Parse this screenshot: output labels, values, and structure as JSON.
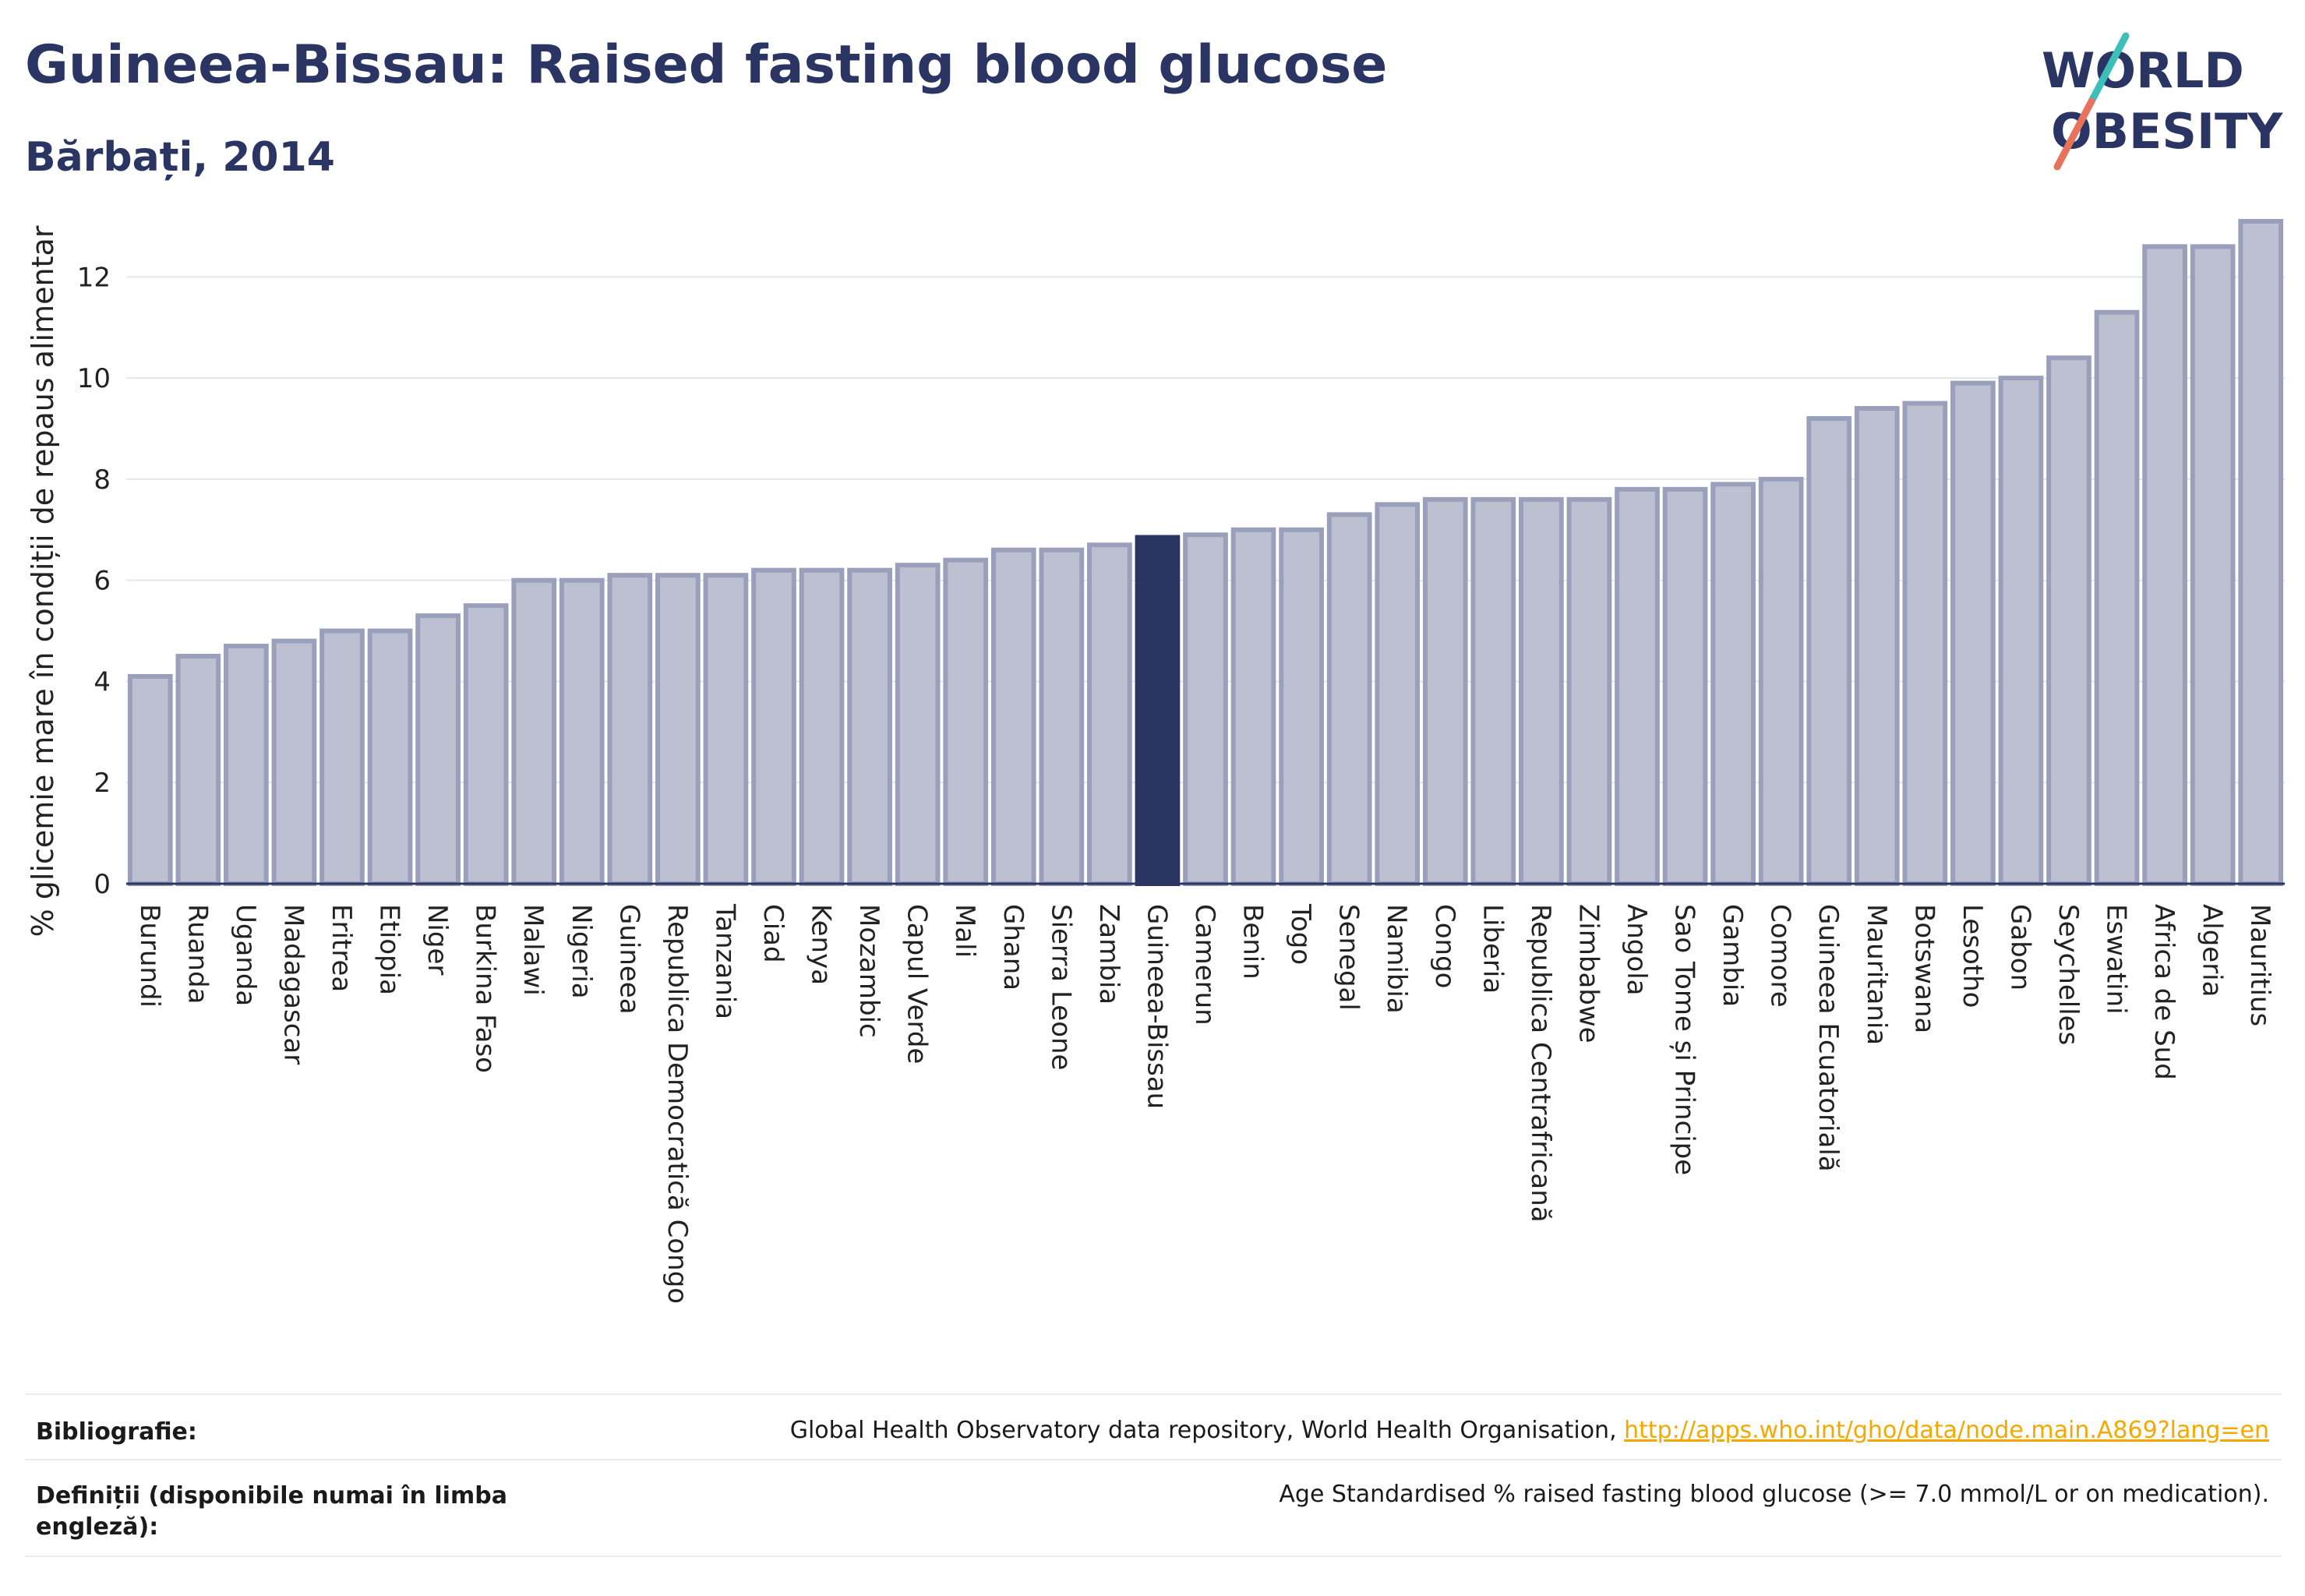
{
  "header": {
    "title": "Guineea-Bissau: Raised fasting blood glucose",
    "subtitle": "Bărbați, 2014"
  },
  "logo": {
    "line1": "WORLD",
    "line2": "OBESITY",
    "letter_o": "O",
    "rest1": "RLD",
    "rest2": "BESITY",
    "w": "W"
  },
  "colors": {
    "bar": "#bcc0d0",
    "bar_border": "#9aa0bb",
    "highlight": "#2a3563",
    "text": "#2a3563",
    "logo_teal": "#3bbfb8",
    "logo_coral": "#e8735c",
    "link": "#f5a800"
  },
  "chart_data": {
    "type": "bar",
    "ylabel": "% glicemie mare în condiții de repaus alimentar",
    "ylim": [
      0,
      13.5
    ],
    "yticks": [
      0,
      2,
      4,
      6,
      8,
      10,
      12
    ],
    "grid": true,
    "highlight": "Guineea-Bissau",
    "categories": [
      "Burundi",
      "Ruanda",
      "Uganda",
      "Madagascar",
      "Eritrea",
      "Etiopia",
      "Niger",
      "Burkina Faso",
      "Malawi",
      "Nigeria",
      "Guineea",
      "Republica Democratică Congo",
      "Tanzania",
      "Ciad",
      "Kenya",
      "Mozambic",
      "Capul Verde",
      "Mali",
      "Ghana",
      "Sierra Leone",
      "Zambia",
      "Guineea-Bissau",
      "Camerun",
      "Benin",
      "Togo",
      "Senegal",
      "Namibia",
      "Congo",
      "Liberia",
      "Republica Centrafricană",
      "Zimbabwe",
      "Angola",
      "Sao Tome și Principe",
      "Gambia",
      "Comore",
      "Guineea Ecuatorială",
      "Mauritania",
      "Botswana",
      "Lesotho",
      "Gabon",
      "Seychelles",
      "Eswatini",
      "Africa de Sud",
      "Algeria",
      "Mauritius"
    ],
    "values": [
      4.1,
      4.5,
      4.7,
      4.8,
      5.0,
      5.0,
      5.3,
      5.5,
      6.0,
      6.0,
      6.1,
      6.1,
      6.1,
      6.2,
      6.2,
      6.2,
      6.3,
      6.4,
      6.6,
      6.6,
      6.7,
      6.85,
      6.9,
      7.0,
      7.0,
      7.3,
      7.5,
      7.6,
      7.6,
      7.6,
      7.6,
      7.8,
      7.8,
      7.9,
      8.0,
      9.2,
      9.4,
      9.5,
      9.9,
      10.0,
      10.4,
      11.3,
      12.6,
      12.6,
      13.1
    ]
  },
  "references": {
    "bibliography_label": "Bibliografie:",
    "bibliography_text": "Global Health Observatory data repository, World Health Organisation, ",
    "bibliography_link": "http://apps.who.int/gho/data/node.main.A869?lang=en",
    "definitions_label": "Definiții (disponibile numai în limba engleză):",
    "definitions_text": "Age Standardised % raised fasting blood glucose (>= 7.0 mmol/L or on medication)."
  }
}
